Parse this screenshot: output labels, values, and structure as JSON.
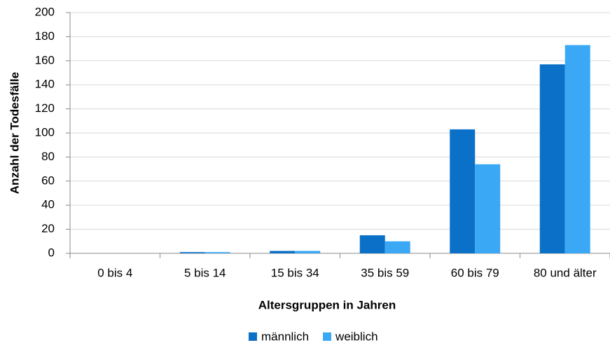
{
  "chart_data": {
    "type": "bar",
    "y_label": "Anzahl der Todesfälle",
    "x_label": "Altersgruppen in Jahren",
    "categories": [
      "0 bis 4",
      "5 bis 14",
      "15 bis 34",
      "35 bis 59",
      "60 bis 79",
      "80 und älter"
    ],
    "series": [
      {
        "name": "männlich",
        "color": "#0a70c8",
        "values": [
          0,
          1,
          2,
          15,
          103,
          157
        ]
      },
      {
        "name": "weiblich",
        "color": "#3aa8f5",
        "values": [
          0,
          1,
          2,
          10,
          74,
          173
        ]
      }
    ],
    "ylim": [
      0,
      200
    ],
    "yticks": [
      0,
      20,
      40,
      60,
      80,
      100,
      120,
      140,
      160,
      180,
      200
    ],
    "grid": true,
    "legend": "bottom"
  }
}
